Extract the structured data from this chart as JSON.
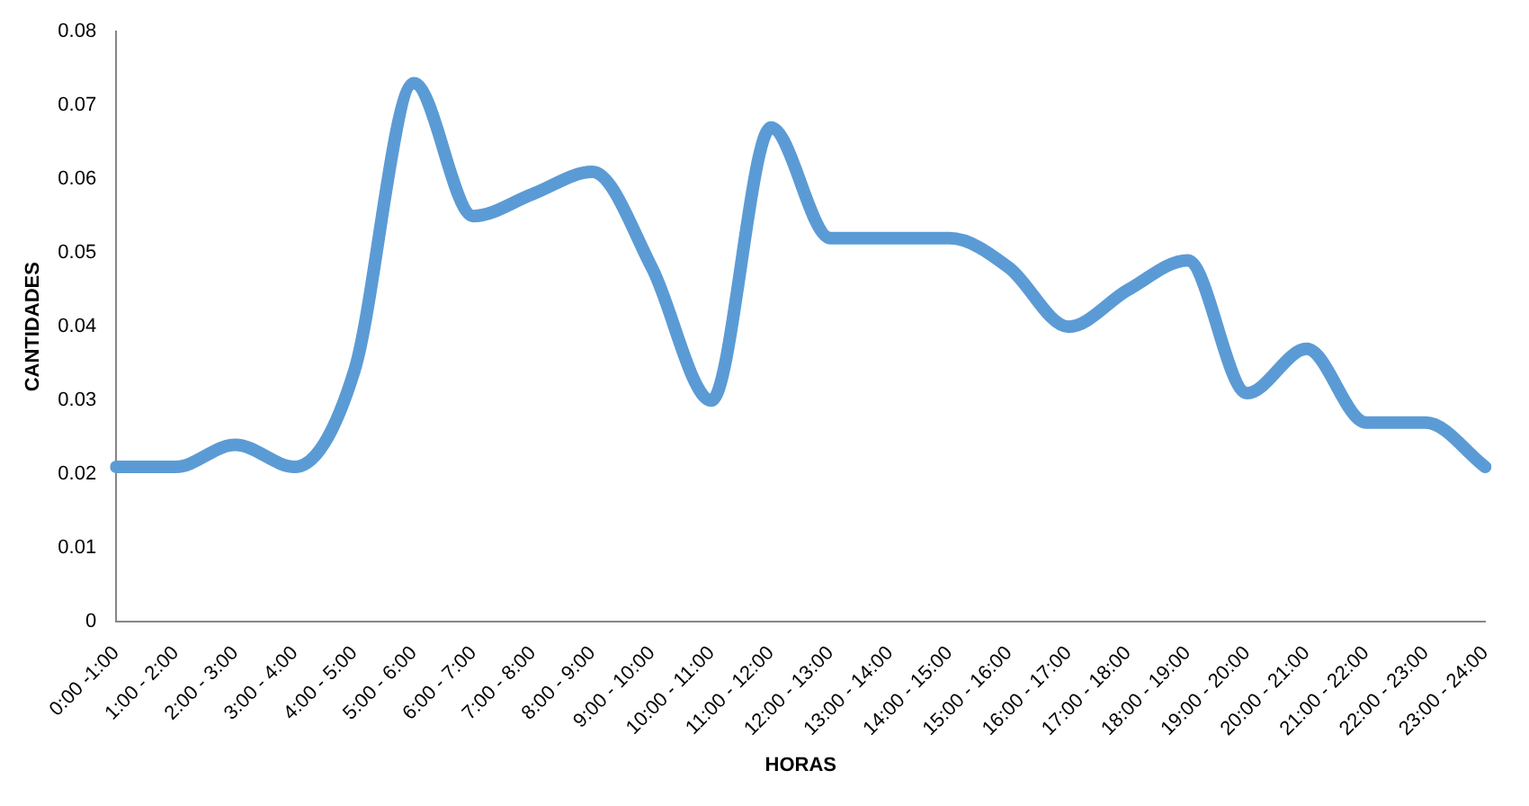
{
  "chart_data": {
    "type": "line",
    "xlabel": "HORAS",
    "ylabel": "CANTIDADES",
    "categories": [
      "0:00 -1:00",
      "1:00 - 2:00",
      "2:00 - 3:00",
      "3:00 - 4:00",
      "4:00 - 5:00",
      "5:00 - 6:00",
      "6:00 - 7:00",
      "7:00 - 8:00",
      "8:00 - 9:00",
      "9:00 - 10:00",
      "10:00 - 11:00",
      "11:00 - 12:00",
      "12:00 - 13:00",
      "13:00 - 14:00",
      "14:00 - 15:00",
      "15:00 - 16:00",
      "16:00 - 17:00",
      "17:00 - 18:00",
      "18:00 - 19:00",
      "19:00 - 20:00",
      "20:00 - 21:00",
      "21:00 - 22:00",
      "22:00 - 23:00",
      "23:00 - 24:00"
    ],
    "series": [
      {
        "color": "#5b9bd5",
        "values": [
          0.021,
          0.021,
          0.024,
          0.021,
          0.034,
          0.073,
          0.055,
          0.058,
          0.061,
          0.048,
          0.03,
          0.067,
          0.052,
          0.052,
          0.052,
          0.048,
          0.04,
          0.045,
          0.049,
          0.031,
          0.037,
          0.027,
          0.027,
          0.021
        ]
      }
    ],
    "ylim": [
      0,
      0.08
    ],
    "yticks": [
      0,
      0.01,
      0.02,
      0.03,
      0.04,
      0.05,
      0.06,
      0.07,
      0.08
    ],
    "grid": false,
    "legend": false,
    "marker": "none",
    "line_style": "solid"
  }
}
